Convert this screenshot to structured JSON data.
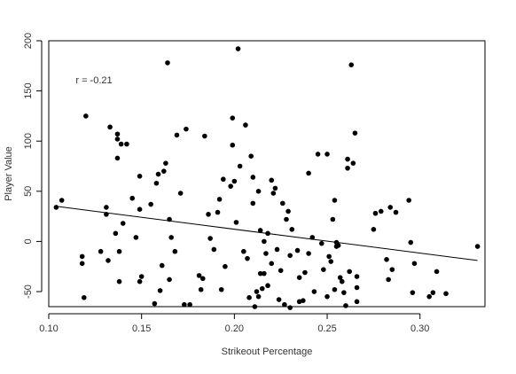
{
  "chart_data": {
    "type": "scatter",
    "title": "",
    "xlabel": "Strikeout Percentage",
    "ylabel": "Player Value",
    "xlim": [
      0.1,
      0.335
    ],
    "ylim": [
      -65,
      200
    ],
    "xticks": [
      0.1,
      0.15,
      0.2,
      0.25,
      0.3
    ],
    "yticks": [
      -50,
      0,
      50,
      100,
      150,
      200
    ],
    "xtick_labels": [
      "0.10",
      "0.15",
      "0.20",
      "0.25",
      "0.30"
    ],
    "ytick_labels": [
      "-50",
      "0",
      "50",
      "100",
      "150",
      "200"
    ],
    "grid": false,
    "annotation": "r = -0.21",
    "point_color": "#000000",
    "trend_line": {
      "x": [
        0.104,
        0.331
      ],
      "y": [
        35,
        -19
      ]
    },
    "points": [
      [
        0.104,
        34
      ],
      [
        0.107,
        41
      ],
      [
        0.118,
        -15
      ],
      [
        0.118,
        -22
      ],
      [
        0.119,
        -56
      ],
      [
        0.12,
        125
      ],
      [
        0.128,
        -10
      ],
      [
        0.131,
        34
      ],
      [
        0.131,
        27
      ],
      [
        0.132,
        -19
      ],
      [
        0.133,
        114
      ],
      [
        0.136,
        8
      ],
      [
        0.137,
        107
      ],
      [
        0.137,
        102
      ],
      [
        0.137,
        83
      ],
      [
        0.138,
        -40
      ],
      [
        0.138,
        -10
      ],
      [
        0.139,
        97
      ],
      [
        0.14,
        18
      ],
      [
        0.142,
        97
      ],
      [
        0.145,
        43
      ],
      [
        0.147,
        4
      ],
      [
        0.149,
        32
      ],
      [
        0.149,
        -40
      ],
      [
        0.15,
        -35
      ],
      [
        0.149,
        65
      ],
      [
        0.155,
        37
      ],
      [
        0.157,
        -62
      ],
      [
        0.158,
        58
      ],
      [
        0.159,
        67
      ],
      [
        0.16,
        -49
      ],
      [
        0.161,
        -24
      ],
      [
        0.162,
        70
      ],
      [
        0.163,
        78
      ],
      [
        0.164,
        178
      ],
      [
        0.165,
        -38
      ],
      [
        0.165,
        22
      ],
      [
        0.166,
        4
      ],
      [
        0.168,
        -10
      ],
      [
        0.169,
        106
      ],
      [
        0.171,
        48
      ],
      [
        0.173,
        -63
      ],
      [
        0.174,
        112
      ],
      [
        0.176,
        -63
      ],
      [
        0.181,
        -34
      ],
      [
        0.182,
        -48
      ],
      [
        0.183,
        -37
      ],
      [
        0.184,
        105
      ],
      [
        0.186,
        27
      ],
      [
        0.187,
        3
      ],
      [
        0.189,
        -8
      ],
      [
        0.191,
        29
      ],
      [
        0.192,
        42
      ],
      [
        0.193,
        -48
      ],
      [
        0.194,
        62
      ],
      [
        0.195,
        -25
      ],
      [
        0.198,
        55
      ],
      [
        0.199,
        123
      ],
      [
        0.199,
        96
      ],
      [
        0.2,
        60
      ],
      [
        0.201,
        19
      ],
      [
        0.202,
        192
      ],
      [
        0.203,
        75
      ],
      [
        0.205,
        -10
      ],
      [
        0.206,
        116
      ],
      [
        0.207,
        -17
      ],
      [
        0.208,
        -56
      ],
      [
        0.209,
        85
      ],
      [
        0.21,
        38
      ],
      [
        0.21,
        64
      ],
      [
        0.211,
        -65
      ],
      [
        0.212,
        -50
      ],
      [
        0.213,
        50
      ],
      [
        0.213,
        -55
      ],
      [
        0.214,
        -32
      ],
      [
        0.214,
        11
      ],
      [
        0.215,
        -47
      ],
      [
        0.216,
        0
      ],
      [
        0.216,
        -32
      ],
      [
        0.217,
        -12
      ],
      [
        0.218,
        8
      ],
      [
        0.218,
        -44
      ],
      [
        0.22,
        -22
      ],
      [
        0.22,
        61
      ],
      [
        0.221,
        48
      ],
      [
        0.222,
        53
      ],
      [
        0.223,
        -8
      ],
      [
        0.224,
        -58
      ],
      [
        0.225,
        -29
      ],
      [
        0.226,
        38
      ],
      [
        0.227,
        -63
      ],
      [
        0.228,
        22
      ],
      [
        0.229,
        30
      ],
      [
        0.23,
        -66
      ],
      [
        0.23,
        -14
      ],
      [
        0.231,
        12
      ],
      [
        0.234,
        -9
      ],
      [
        0.235,
        -36
      ],
      [
        0.235,
        -60
      ],
      [
        0.237,
        -59
      ],
      [
        0.238,
        -31
      ],
      [
        0.24,
        -12
      ],
      [
        0.24,
        68
      ],
      [
        0.242,
        4
      ],
      [
        0.243,
        -50
      ],
      [
        0.245,
        87
      ],
      [
        0.247,
        -2
      ],
      [
        0.248,
        -28
      ],
      [
        0.25,
        -55
      ],
      [
        0.25,
        87
      ],
      [
        0.251,
        -15
      ],
      [
        0.252,
        -20
      ],
      [
        0.253,
        22
      ],
      [
        0.254,
        -48
      ],
      [
        0.254,
        41
      ],
      [
        0.255,
        -1
      ],
      [
        0.255,
        -5
      ],
      [
        0.256,
        -4
      ],
      [
        0.257,
        -36
      ],
      [
        0.258,
        -40
      ],
      [
        0.259,
        -51
      ],
      [
        0.26,
        -64
      ],
      [
        0.261,
        73
      ],
      [
        0.261,
        82
      ],
      [
        0.262,
        -30
      ],
      [
        0.263,
        176
      ],
      [
        0.264,
        78
      ],
      [
        0.265,
        108
      ],
      [
        0.266,
        -60
      ],
      [
        0.266,
        -46
      ],
      [
        0.266,
        -35
      ],
      [
        0.275,
        12
      ],
      [
        0.276,
        28
      ],
      [
        0.279,
        30
      ],
      [
        0.282,
        -18
      ],
      [
        0.283,
        -38
      ],
      [
        0.284,
        34
      ],
      [
        0.285,
        -28
      ],
      [
        0.287,
        29
      ],
      [
        0.294,
        41
      ],
      [
        0.295,
        -1
      ],
      [
        0.296,
        -51
      ],
      [
        0.297,
        -22
      ],
      [
        0.305,
        -55
      ],
      [
        0.307,
        -51
      ],
      [
        0.309,
        -30
      ],
      [
        0.314,
        -52
      ],
      [
        0.331,
        -5
      ]
    ]
  }
}
